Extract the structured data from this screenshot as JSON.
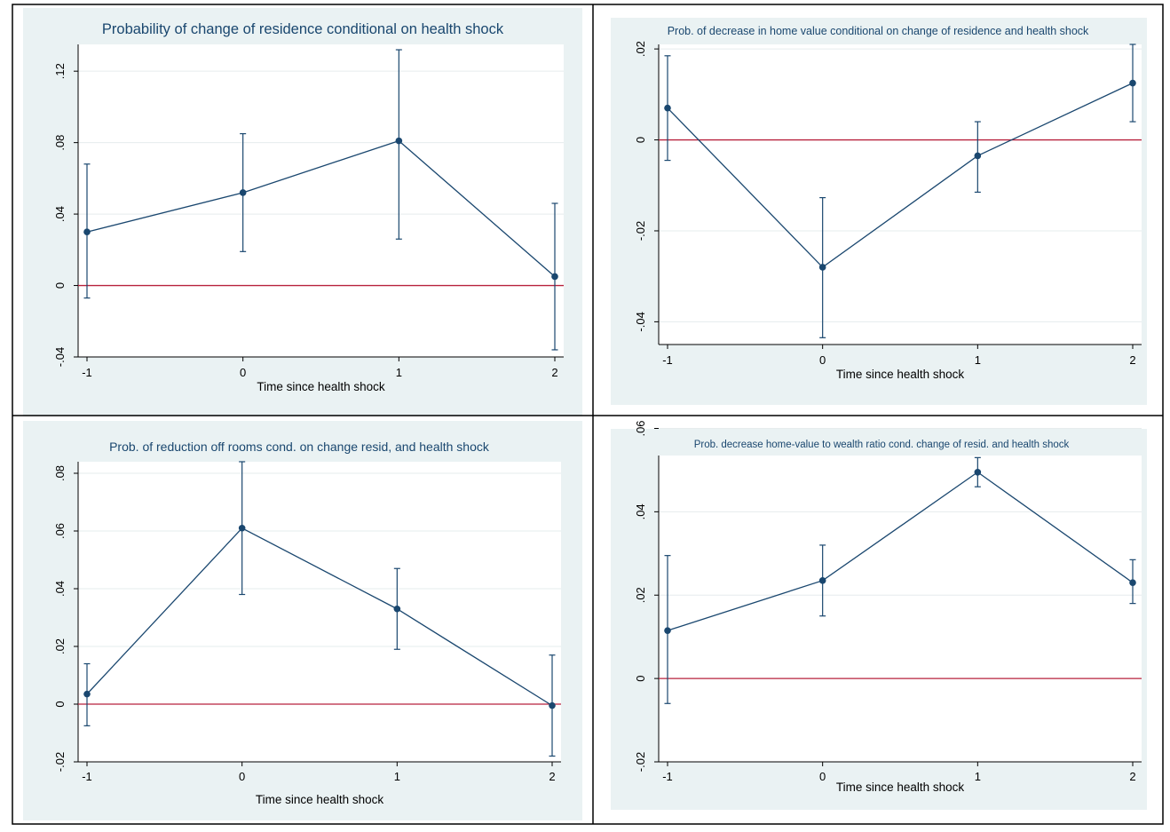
{
  "chart_data": [
    {
      "type": "line",
      "title": "Probability of change of residence conditional on health shock",
      "xlabel": "Time since health shock",
      "ylabel": "",
      "x": [
        -1,
        0,
        1,
        2
      ],
      "x_ticks": [
        "-1",
        "0",
        "1",
        "2"
      ],
      "y_ticks": [
        -0.04,
        0,
        0.04,
        0.08,
        0.12
      ],
      "y_tick_labels": [
        "-.04",
        "0",
        ".04",
        ".08",
        ".12"
      ],
      "xlim": [
        -1,
        2
      ],
      "ylim": [
        -0.04,
        0.135
      ],
      "reference_line": 0,
      "grid": true,
      "series": [
        {
          "values": [
            0.03,
            0.052,
            0.081,
            0.005
          ],
          "ci_lower": [
            -0.007,
            0.019,
            0.026,
            -0.036
          ],
          "ci_upper": [
            0.068,
            0.085,
            0.132,
            0.046
          ]
        }
      ]
    },
    {
      "type": "line",
      "title": "Prob. of decrease in home value conditional on change of residence and health shock",
      "xlabel": "Time since health shock",
      "ylabel": "",
      "x": [
        -1,
        0,
        1,
        2
      ],
      "x_ticks": [
        "-1",
        "0",
        "1",
        "2"
      ],
      "y_ticks": [
        -0.04,
        -0.02,
        0,
        0.02
      ],
      "y_tick_labels": [
        "-.04",
        "-.02",
        "0",
        ".02"
      ],
      "xlim": [
        -1,
        2
      ],
      "ylim": [
        -0.045,
        0.021
      ],
      "reference_line": 0,
      "grid": true,
      "series": [
        {
          "values": [
            0.007,
            -0.028,
            -0.0035,
            0.0125
          ],
          "ci_lower": [
            -0.0045,
            -0.0435,
            -0.0115,
            0.004
          ],
          "ci_upper": [
            0.0185,
            -0.0127,
            0.004,
            0.021
          ]
        }
      ]
    },
    {
      "type": "line",
      "title": "Prob. of reduction off rooms  cond. on change resid, and health shock",
      "xlabel": "Time since health shock",
      "ylabel": "",
      "x": [
        -1,
        0,
        1,
        2
      ],
      "x_ticks": [
        "-1",
        "0",
        "1",
        "2"
      ],
      "y_ticks": [
        -0.02,
        0,
        0.02,
        0.04,
        0.06,
        0.08
      ],
      "y_tick_labels": [
        "-.02",
        "0",
        ".02",
        ".04",
        ".06",
        ".08"
      ],
      "xlim": [
        -1,
        2
      ],
      "ylim": [
        -0.02,
        0.084
      ],
      "reference_line": 0,
      "grid": true,
      "series": [
        {
          "values": [
            0.0035,
            0.061,
            0.033,
            -0.0005
          ],
          "ci_lower": [
            -0.0075,
            0.038,
            0.019,
            -0.018
          ],
          "ci_upper": [
            0.014,
            0.084,
            0.047,
            0.017
          ]
        }
      ]
    },
    {
      "type": "line",
      "title": "Prob. decrease home-value to wealth ratio cond. change of resid. and health shock",
      "xlabel": "Time since health shock",
      "ylabel": "",
      "x": [
        -1,
        0,
        1,
        2
      ],
      "x_ticks": [
        "-1",
        "0",
        "1",
        "2"
      ],
      "y_ticks": [
        -0.02,
        0,
        0.02,
        0.04,
        0.06
      ],
      "y_tick_labels": [
        "-.02",
        "0",
        ".02",
        ".04",
        ".06"
      ],
      "xlim": [
        -1,
        2
      ],
      "ylim": [
        -0.02,
        0.0535
      ],
      "reference_line": 0,
      "grid": true,
      "series": [
        {
          "values": [
            0.0115,
            0.0235,
            0.0495,
            0.023
          ],
          "ci_lower": [
            -0.006,
            0.015,
            0.046,
            0.018
          ],
          "ci_upper": [
            0.0295,
            0.032,
            0.053,
            0.0285
          ]
        }
      ]
    }
  ],
  "colors": {
    "panel_bg": "#eaf2f3",
    "plot_bg": "#ffffff",
    "grid": "#e6eced",
    "series": "#1a476f",
    "reference_line": "#b7223d",
    "axis": "#000000",
    "border": "#000000"
  }
}
